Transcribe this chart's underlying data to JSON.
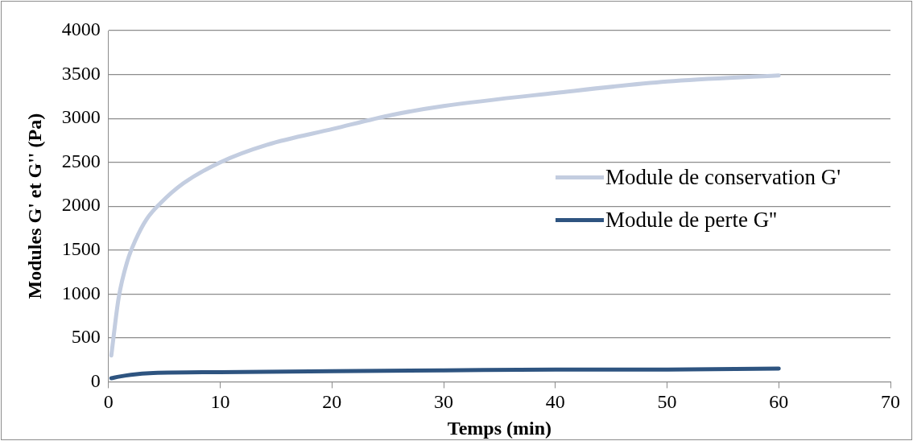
{
  "chart_data": {
    "type": "line",
    "xlabel": "Temps (min)",
    "ylabel": "Modules G' et G'' (Pa)",
    "xlim": [
      0,
      70
    ],
    "xticks": [
      0,
      10,
      20,
      30,
      40,
      50,
      60,
      70
    ],
    "ylim": [
      0,
      4000
    ],
    "yticks": [
      0,
      500,
      1000,
      1500,
      2000,
      2500,
      3000,
      3500,
      4000
    ],
    "grid": "y",
    "legend": "right",
    "marker": "none",
    "line_style": "solid",
    "series": [
      {
        "name": "Module de conservation G'",
        "color": "#c3cde0",
        "x": [
          0.25,
          0.9,
          1.7,
          2.4,
          3.4,
          4.7,
          6.7,
          10,
          14.2,
          20.1,
          25.4,
          30,
          40,
          50,
          60
        ],
        "values": [
          300,
          950,
          1380,
          1610,
          1850,
          2040,
          2260,
          2500,
          2700,
          2880,
          3040,
          3140,
          3290,
          3420,
          3490
        ]
      },
      {
        "name": "Module de perte G''",
        "color": "#2e5480",
        "x": [
          0.25,
          1,
          2,
          4,
          10,
          20,
          30,
          40,
          50,
          60
        ],
        "values": [
          40,
          60,
          80,
          100,
          110,
          120,
          130,
          140,
          140,
          150
        ]
      }
    ]
  }
}
